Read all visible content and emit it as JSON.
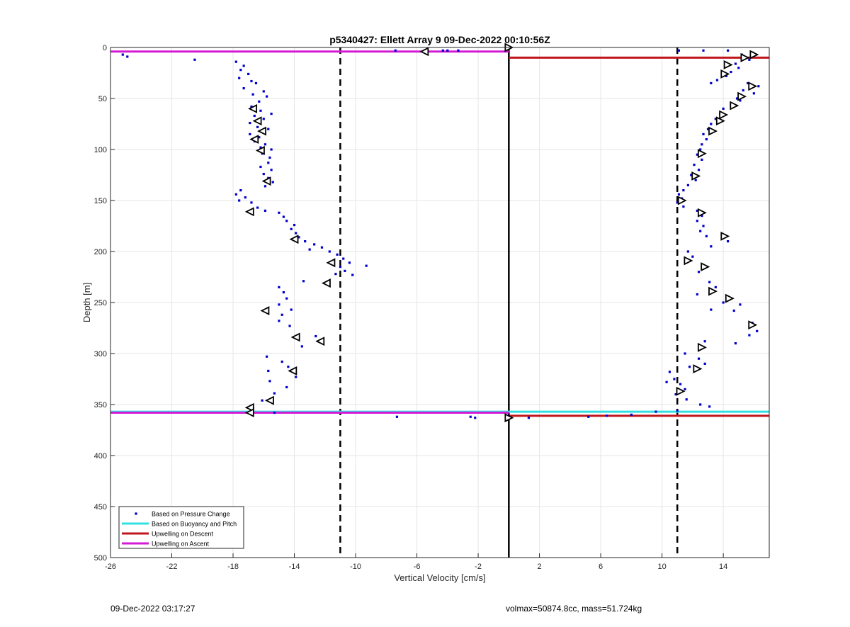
{
  "chart_data": {
    "type": "scatter",
    "title": "p5340427: Ellett Array 9 09-Dec-2022 00:10:56Z",
    "xlabel": "Vertical Velocity [cm/s]",
    "ylabel": "Depth [m]",
    "xlim": [
      -26,
      17
    ],
    "ylim": [
      0,
      500
    ],
    "y_reversed": true,
    "grid": true,
    "xticks": [
      -26,
      -22,
      -18,
      -14,
      -10,
      -6,
      -2,
      2,
      6,
      10,
      14
    ],
    "yticks": [
      0,
      50,
      100,
      150,
      200,
      250,
      300,
      350,
      400,
      450,
      500
    ],
    "legend": {
      "position": "bottom-left",
      "entries": [
        {
          "label": "Based on Pressure Change",
          "color": "#0000cc",
          "style": "dot"
        },
        {
          "label": "Based on Buoyancy and Pitch",
          "color": "#33e0e0",
          "style": "line"
        },
        {
          "label": "Upwelling on Descent",
          "color": "#c0161c",
          "style": "line"
        },
        {
          "label": "Upwelling on Ascent",
          "color": "#d41ad4",
          "style": "line"
        }
      ]
    },
    "reference_lines": {
      "zero_line_x": 0,
      "dashed_lines_x": [
        -11,
        11
      ]
    },
    "horizontal_lines": [
      {
        "series": "Upwelling on Ascent",
        "y": 4,
        "x_from": -26,
        "x_to": 0,
        "color": "#d41ad4"
      },
      {
        "series": "Upwelling on Descent",
        "y": 10,
        "x_from": 0,
        "x_to": 17,
        "color": "#c0161c"
      },
      {
        "series": "Based on Buoyancy and Pitch",
        "y": 357,
        "x_from": -26,
        "x_to": 17,
        "color": "#33e0e0"
      },
      {
        "series": "Upwelling on Ascent",
        "y": 358,
        "x_from": -26,
        "x_to": 0,
        "color": "#d41ad4"
      },
      {
        "series": "Upwelling on Descent",
        "y": 361,
        "x_from": 0,
        "x_to": 17,
        "color": "#c0161c"
      }
    ],
    "pressure_points_ascent": [
      [
        -25.2,
        7
      ],
      [
        -24.9,
        9
      ],
      [
        -20.5,
        12
      ],
      [
        -17.8,
        14
      ],
      [
        -17.3,
        18
      ],
      [
        -17.5,
        22
      ],
      [
        -17.0,
        26
      ],
      [
        -17.6,
        30
      ],
      [
        -16.8,
        33
      ],
      [
        -16.5,
        35
      ],
      [
        -17.3,
        40
      ],
      [
        -16.0,
        43
      ],
      [
        -16.7,
        46
      ],
      [
        -15.8,
        48
      ],
      [
        -16.3,
        53
      ],
      [
        -16.8,
        58
      ],
      [
        -16.2,
        62
      ],
      [
        -16.6,
        67
      ],
      [
        -16.0,
        70
      ],
      [
        -15.5,
        65
      ],
      [
        -16.9,
        74
      ],
      [
        -16.4,
        78
      ],
      [
        -15.7,
        80
      ],
      [
        -16.9,
        85
      ],
      [
        -16.3,
        88
      ],
      [
        -16.6,
        92
      ],
      [
        -15.9,
        95
      ],
      [
        -16.2,
        98
      ],
      [
        -15.5,
        100
      ],
      [
        -16.1,
        104
      ],
      [
        -15.6,
        108
      ],
      [
        -15.7,
        113
      ],
      [
        -16.2,
        117
      ],
      [
        -15.5,
        120
      ],
      [
        -16.0,
        124
      ],
      [
        -15.7,
        128
      ],
      [
        -15.4,
        132
      ],
      [
        -15.9,
        136
      ],
      [
        -17.5,
        140
      ],
      [
        -17.8,
        144
      ],
      [
        -17.2,
        147
      ],
      [
        -17.6,
        150
      ],
      [
        -16.8,
        152
      ],
      [
        -16.4,
        157
      ],
      [
        -15.9,
        160
      ],
      [
        -15.0,
        162
      ],
      [
        -14.7,
        166
      ],
      [
        -14.5,
        170
      ],
      [
        -14.0,
        174
      ],
      [
        -14.2,
        178
      ],
      [
        -13.9,
        182
      ],
      [
        -13.7,
        186
      ],
      [
        -13.3,
        190
      ],
      [
        -12.7,
        193
      ],
      [
        -12.2,
        196
      ],
      [
        -13.0,
        198
      ],
      [
        -11.7,
        200
      ],
      [
        -11.2,
        203
      ],
      [
        -10.8,
        207
      ],
      [
        -10.4,
        211
      ],
      [
        -11.0,
        215
      ],
      [
        -10.7,
        219
      ],
      [
        -10.2,
        223
      ],
      [
        -9.3,
        214
      ],
      [
        -11.3,
        222
      ],
      [
        -13.4,
        229
      ],
      [
        -15.0,
        235
      ],
      [
        -14.7,
        240
      ],
      [
        -14.5,
        246
      ],
      [
        -15.0,
        252
      ],
      [
        -14.2,
        257
      ],
      [
        -14.8,
        262
      ],
      [
        -15.0,
        268
      ],
      [
        -14.3,
        273
      ],
      [
        -12.6,
        283
      ],
      [
        -13.5,
        293
      ],
      [
        -15.8,
        303
      ],
      [
        -14.8,
        308
      ],
      [
        -14.4,
        313
      ],
      [
        -15.7,
        317
      ],
      [
        -13.9,
        323
      ],
      [
        -15.6,
        327
      ],
      [
        -14.5,
        333
      ],
      [
        -15.3,
        339
      ],
      [
        -16.1,
        346
      ],
      [
        -16.7,
        353
      ],
      [
        -15.3,
        358
      ],
      [
        -7.3,
        362
      ],
      [
        -2.5,
        362
      ],
      [
        -2.2,
        363
      ],
      [
        -7.4,
        3
      ],
      [
        -4.3,
        3
      ],
      [
        -4.0,
        3
      ],
      [
        -3.3,
        3
      ]
    ],
    "pressure_points_descent": [
      [
        11.1,
        3
      ],
      [
        12.7,
        3
      ],
      [
        14.3,
        3
      ],
      [
        15.9,
        5
      ],
      [
        15.2,
        7
      ],
      [
        15.7,
        12
      ],
      [
        14.8,
        16
      ],
      [
        15.0,
        20
      ],
      [
        14.5,
        24
      ],
      [
        14.2,
        28
      ],
      [
        13.6,
        32
      ],
      [
        13.2,
        35
      ],
      [
        15.6,
        35
      ],
      [
        16.3,
        38
      ],
      [
        15.3,
        42
      ],
      [
        16.0,
        45
      ],
      [
        14.9,
        50
      ],
      [
        15.1,
        52
      ],
      [
        14.5,
        56
      ],
      [
        14.0,
        60
      ],
      [
        13.8,
        65
      ],
      [
        13.5,
        70
      ],
      [
        13.2,
        75
      ],
      [
        13.0,
        80
      ],
      [
        12.7,
        85
      ],
      [
        12.9,
        90
      ],
      [
        12.6,
        95
      ],
      [
        12.5,
        100
      ],
      [
        12.3,
        105
      ],
      [
        12.6,
        110
      ],
      [
        12.1,
        115
      ],
      [
        12.4,
        120
      ],
      [
        11.9,
        125
      ],
      [
        12.2,
        130
      ],
      [
        11.7,
        135
      ],
      [
        11.4,
        140
      ],
      [
        11.1,
        144
      ],
      [
        11.3,
        148
      ],
      [
        11.0,
        152
      ],
      [
        11.4,
        156
      ],
      [
        12.3,
        160
      ],
      [
        12.6,
        165
      ],
      [
        12.3,
        170
      ],
      [
        12.7,
        175
      ],
      [
        12.5,
        180
      ],
      [
        12.9,
        185
      ],
      [
        14.3,
        190
      ],
      [
        13.2,
        195
      ],
      [
        11.7,
        200
      ],
      [
        12.0,
        205
      ],
      [
        11.6,
        210
      ],
      [
        12.4,
        220
      ],
      [
        13.1,
        230
      ],
      [
        13.5,
        235
      ],
      [
        12.3,
        242
      ],
      [
        14.0,
        250
      ],
      [
        15.1,
        252
      ],
      [
        13.2,
        257
      ],
      [
        14.7,
        258
      ],
      [
        15.9,
        270
      ],
      [
        16.2,
        278
      ],
      [
        12.8,
        288
      ],
      [
        14.8,
        290
      ],
      [
        15.7,
        282
      ],
      [
        11.5,
        300
      ],
      [
        12.4,
        305
      ],
      [
        12.8,
        310
      ],
      [
        11.8,
        313
      ],
      [
        10.5,
        318
      ],
      [
        10.8,
        325
      ],
      [
        11.2,
        330
      ],
      [
        10.3,
        328
      ],
      [
        11.5,
        335
      ],
      [
        10.9,
        340
      ],
      [
        11.6,
        345
      ],
      [
        12.5,
        350
      ],
      [
        13.1,
        352
      ],
      [
        11.0,
        356
      ],
      [
        9.6,
        357
      ],
      [
        8.0,
        360
      ],
      [
        6.4,
        361
      ],
      [
        5.2,
        362
      ],
      [
        1.3,
        363
      ],
      [
        0.0,
        361
      ]
    ],
    "triangle_markers_ascent": [
      [
        -5.5,
        4
      ],
      [
        -16.7,
        60
      ],
      [
        -16.4,
        72
      ],
      [
        -16.1,
        82
      ],
      [
        -16.6,
        90
      ],
      [
        -16.2,
        101
      ],
      [
        -15.8,
        131
      ],
      [
        -16.9,
        161
      ],
      [
        -14.0,
        188
      ],
      [
        -11.6,
        211
      ],
      [
        -11.9,
        231
      ],
      [
        -15.9,
        258
      ],
      [
        -13.9,
        284
      ],
      [
        -12.3,
        288
      ],
      [
        -14.1,
        317
      ],
      [
        -15.6,
        346
      ],
      [
        -16.9,
        353
      ],
      [
        -16.9,
        358
      ]
    ],
    "triangle_markers_descent": [
      [
        0.0,
        0
      ],
      [
        16.0,
        7
      ],
      [
        15.4,
        10
      ],
      [
        14.3,
        17
      ],
      [
        14.1,
        26
      ],
      [
        15.9,
        38
      ],
      [
        15.2,
        48
      ],
      [
        14.7,
        57
      ],
      [
        14.0,
        66
      ],
      [
        13.8,
        72
      ],
      [
        13.3,
        82
      ],
      [
        12.6,
        104
      ],
      [
        12.2,
        126
      ],
      [
        11.3,
        150
      ],
      [
        12.6,
        162
      ],
      [
        14.1,
        185
      ],
      [
        11.7,
        209
      ],
      [
        12.8,
        215
      ],
      [
        13.3,
        239
      ],
      [
        14.4,
        246
      ],
      [
        15.9,
        272
      ],
      [
        12.6,
        294
      ],
      [
        12.3,
        315
      ],
      [
        11.2,
        337
      ],
      [
        0.0,
        363
      ]
    ]
  },
  "footer": {
    "timestamp": "09-Dec-2022 03:17:27",
    "params": "volmax=50874.8cc, mass=51.724kg"
  }
}
